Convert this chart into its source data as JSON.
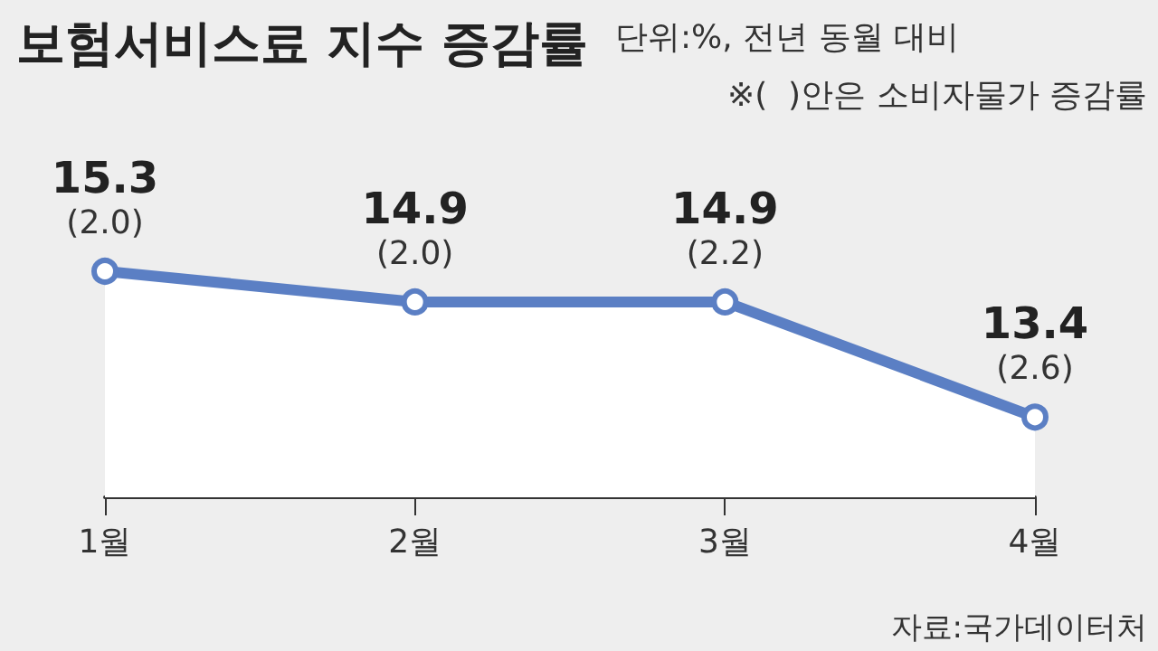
{
  "chart_data": {
    "type": "area",
    "title": "보험서비스료 지수 증감률",
    "annotations": [
      "단위:%, 전년 동월 대비",
      "※(  )안은 소비자물가 증감률",
      "자료:국가데이터처"
    ],
    "categories": [
      "1월",
      "2월",
      "3월",
      "4월"
    ],
    "series": [
      {
        "color": "#5b7fc4",
        "values": [
          15.3,
          14.9,
          14.9,
          13.4
        ],
        "value_labels": [
          "15.3\n(2.0)",
          "14.9\n(2.0)",
          "14.9\n(2.2)",
          "13.4\n(2.6)"
        ]
      }
    ],
    "marker": "circle"
  }
}
